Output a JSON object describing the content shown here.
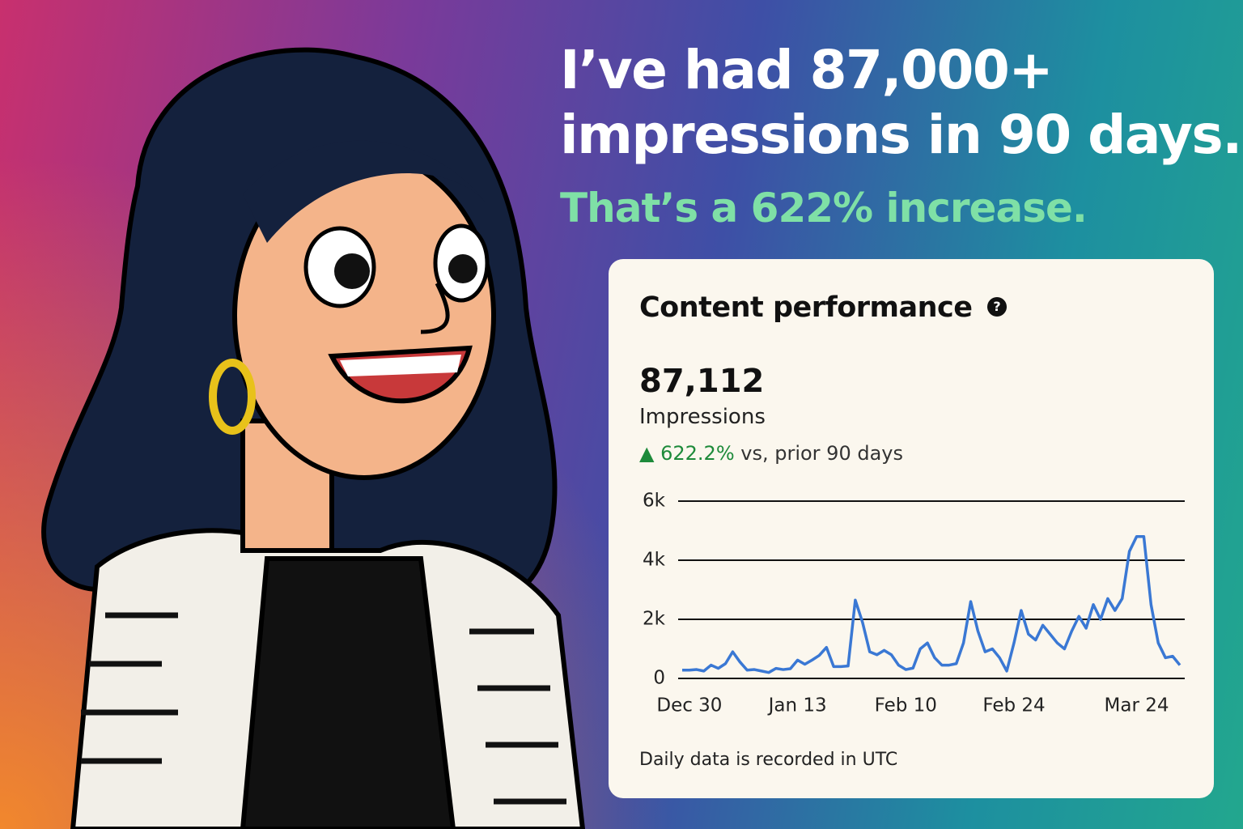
{
  "headline": [
    "I’ve had 87,000+",
    "impressions in 90 days."
  ],
  "subheadline": "That’s a 622% increase.",
  "card": {
    "title": "Content performance",
    "total": "87,112",
    "metric": "Impressions",
    "change": "622.2%",
    "comparison": "vs, prior 90 days",
    "footnote": "Daily data is recorded in UTC"
  },
  "chart_data": {
    "type": "line",
    "color": "#3a78d4",
    "categories": [
      null,
      "Dec 30",
      null,
      null,
      null,
      null,
      null,
      null,
      null,
      null,
      null,
      null,
      null,
      null,
      null,
      null,
      "Jan 13",
      null,
      null,
      null,
      null,
      null,
      null,
      null,
      null,
      null,
      null,
      null,
      null,
      null,
      null,
      "Feb 10",
      null,
      null,
      null,
      null,
      null,
      null,
      null,
      null,
      null,
      null,
      null,
      null,
      null,
      null,
      "Feb 24",
      null,
      null,
      null,
      null,
      null,
      null,
      null,
      null,
      null,
      null,
      null,
      null,
      null,
      null,
      null,
      null,
      "Mar 24",
      null,
      null,
      null,
      null,
      null,
      null
    ],
    "values": [
      280,
      280,
      300,
      250,
      450,
      340,
      500,
      900,
      560,
      280,
      300,
      250,
      200,
      340,
      300,
      330,
      620,
      480,
      620,
      780,
      1050,
      400,
      400,
      420,
      2650,
      1900,
      900,
      800,
      950,
      800,
      450,
      300,
      350,
      1000,
      1200,
      700,
      450,
      450,
      500,
      1200,
      2600,
      1600,
      900,
      1000,
      700,
      250,
      1200,
      2300,
      1500,
      1300,
      1800,
      1500,
      1200,
      1000,
      1600,
      2100,
      1700,
      2500,
      2000,
      2700,
      2300,
      2700,
      4300,
      4800,
      4800,
      2500,
      1200,
      700,
      750,
      450
    ],
    "ylim": [
      0,
      6000
    ],
    "yticks": [
      {
        "value": 0,
        "label": "0"
      },
      {
        "value": 2000,
        "label": "2k"
      },
      {
        "value": 4000,
        "label": "4k"
      },
      {
        "value": 6000,
        "label": "6k"
      }
    ],
    "grid": true
  }
}
